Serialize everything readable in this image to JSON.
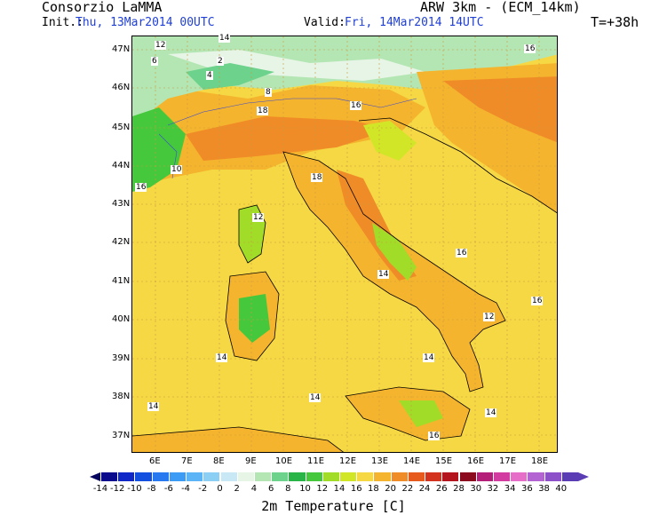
{
  "header": {
    "org": "Consorzio LaMMA",
    "init_label": "Init.:",
    "init_value": "Thu, 13Mar2014 00UTC",
    "model": "ARW 3km - (ECM_14km)",
    "valid_label": "Valid:",
    "valid_value": "Fri, 14Mar2014 14UTC",
    "lead": "T=+38h"
  },
  "map": {
    "lat_labels": [
      "47N",
      "46N",
      "45N",
      "44N",
      "43N",
      "42N",
      "41N",
      "40N",
      "39N",
      "38N",
      "37N"
    ],
    "lon_labels": [
      "6E",
      "7E",
      "8E",
      "9E",
      "10E",
      "11E",
      "12E",
      "13E",
      "14E",
      "15E",
      "16E",
      "17E",
      "18E"
    ]
  },
  "colorbar": {
    "title": "2m Temperature [C]",
    "tick_labels": [
      "-14",
      "-12",
      "-10",
      "-8",
      "-6",
      "-4",
      "-2",
      "0",
      "2",
      "4",
      "6",
      "8",
      "10",
      "12",
      "14",
      "16",
      "18",
      "20",
      "22",
      "24",
      "26",
      "28",
      "30",
      "32",
      "34",
      "36",
      "38",
      "40"
    ],
    "colors": [
      "#0a0a8c",
      "#1028c8",
      "#1450e0",
      "#2878f0",
      "#3c9cf5",
      "#5ab4f5",
      "#8ccff5",
      "#c8e8f5",
      "#e6f5e6",
      "#b4e6b4",
      "#6cd28c",
      "#28b446",
      "#46c83c",
      "#a0dc28",
      "#d2e628",
      "#f6d845",
      "#f5b42d",
      "#f08c28",
      "#e65a1e",
      "#d2321e",
      "#b4141e",
      "#8c0a1e",
      "#b41e78",
      "#d23ca0",
      "#e66ec8",
      "#b464d2",
      "#8c50c8",
      "#5a3cb4"
    ]
  },
  "temp_labels": [
    "12",
    "14",
    "16",
    "18",
    "10",
    "8",
    "6",
    "4",
    "2"
  ]
}
